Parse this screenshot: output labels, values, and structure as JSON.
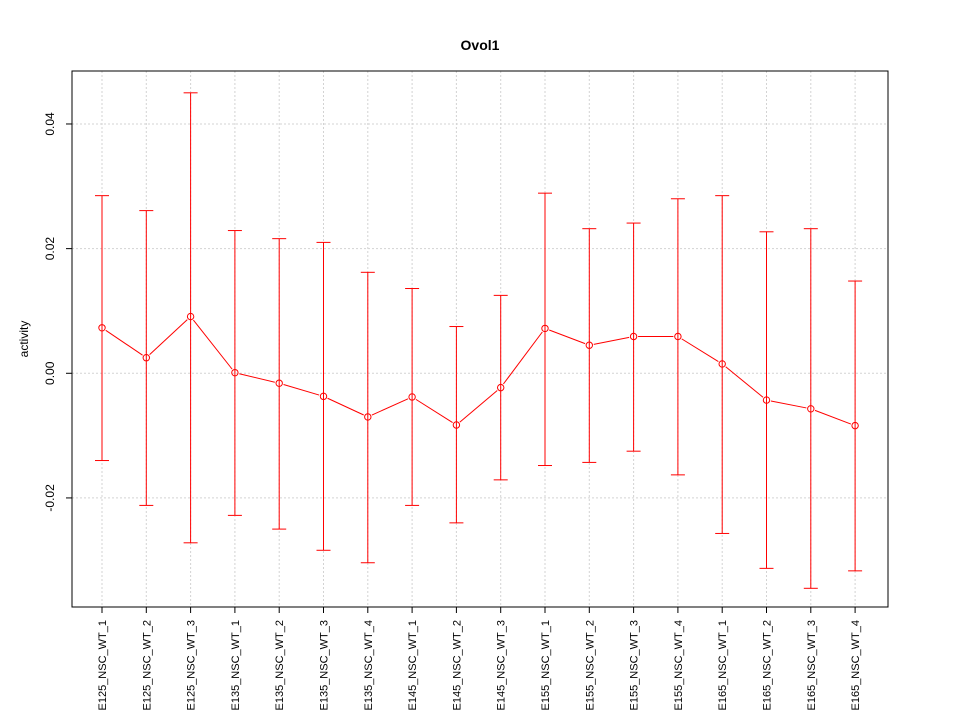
{
  "chart_data": {
    "type": "line",
    "title": "Ovol1",
    "xlabel": "",
    "ylabel": "activity",
    "categories": [
      "E125_NSC_WT_1",
      "E125_NSC_WT_2",
      "E125_NSC_WT_3",
      "E135_NSC_WT_1",
      "E135_NSC_WT_2",
      "E135_NSC_WT_3",
      "E135_NSC_WT_4",
      "E145_NSC_WT_1",
      "E145_NSC_WT_2",
      "E145_NSC_WT_3",
      "E155_NSC_WT_1",
      "E155_NSC_WT_2",
      "E155_NSC_WT_3",
      "E155_NSC_WT_4",
      "E165_NSC_WT_1",
      "E165_NSC_WT_2",
      "E165_NSC_WT_3",
      "E165_NSC_WT_4"
    ],
    "values": [
      0.0073,
      0.0025,
      0.0091,
      0.0001,
      -0.0016,
      -0.0037,
      -0.007,
      -0.0038,
      -0.0083,
      -0.0023,
      0.0072,
      0.0045,
      0.0059,
      0.0059,
      0.0015,
      -0.0043,
      -0.0057,
      -0.0084
    ],
    "upper": [
      0.0285,
      0.0261,
      0.045,
      0.0229,
      0.0216,
      0.021,
      0.0162,
      0.0136,
      0.0075,
      0.0125,
      0.0289,
      0.0232,
      0.0241,
      0.028,
      0.0285,
      0.0227,
      0.0232,
      0.0148
    ],
    "lower": [
      -0.014,
      -0.0212,
      -0.0272,
      -0.0228,
      -0.025,
      -0.0284,
      -0.0304,
      -0.0212,
      -0.024,
      -0.0171,
      -0.0148,
      -0.0143,
      -0.0125,
      -0.0163,
      -0.0257,
      -0.0313,
      -0.0345,
      -0.0317
    ],
    "yticks": [
      -0.02,
      0.0,
      0.02,
      0.04
    ],
    "ytick_labels": [
      "-0.02",
      "0.00",
      "0.02",
      "0.04"
    ],
    "ylim": [
      -0.0375,
      0.0485
    ],
    "grid": true,
    "color": "#ff0000",
    "grid_color": "#d3d3d3"
  }
}
